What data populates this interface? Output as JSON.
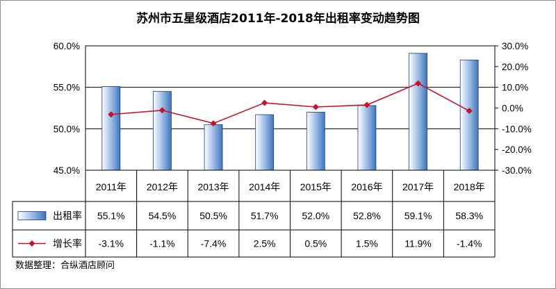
{
  "chart_data": {
    "type": "bar",
    "title": "苏州市五星级酒店2011年-2018年出租率变动趋势图",
    "categories": [
      "2011年",
      "2012年",
      "2013年",
      "2014年",
      "2015年",
      "2016年",
      "2017年",
      "2018年"
    ],
    "series": [
      {
        "name": "出租率",
        "type": "bar",
        "axis": "left",
        "values": [
          55.1,
          54.5,
          50.5,
          51.7,
          52.0,
          52.8,
          59.1,
          58.3
        ],
        "labels": [
          "55.1%",
          "54.5%",
          "50.5%",
          "51.7%",
          "52.0%",
          "52.8%",
          "59.1%",
          "58.3%"
        ],
        "color": "#5b8fd0"
      },
      {
        "name": "增长率",
        "type": "line",
        "axis": "right",
        "values": [
          -3.1,
          -1.1,
          -7.4,
          2.5,
          0.5,
          1.5,
          11.9,
          -1.4
        ],
        "labels": [
          "-3.1%",
          "-1.1%",
          "-7.4%",
          "2.5%",
          "0.5%",
          "1.5%",
          "11.9%",
          "-1.4%"
        ],
        "color": "#c8102e"
      }
    ],
    "y_left": {
      "ylim": [
        45,
        60
      ],
      "ticks": [
        60,
        55,
        50,
        45
      ],
      "tick_labels": [
        "60.0%",
        "55.0%",
        "50.0%",
        "45.0%"
      ]
    },
    "y_right": {
      "ylim": [
        -30,
        30
      ],
      "ticks": [
        30,
        20,
        10,
        0,
        -10,
        -20,
        -30
      ],
      "tick_labels": [
        "30.0%",
        "20.0%",
        "10.0%",
        "0.0%",
        "-10.0%",
        "-20.0%",
        "-30.0%"
      ]
    },
    "grid": true,
    "legend": "data-table",
    "source": "数据整理：合纵酒店顾问"
  }
}
